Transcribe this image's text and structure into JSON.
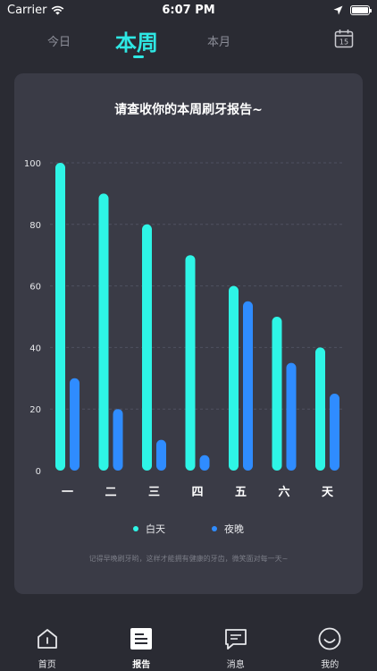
{
  "status_bar": {
    "carrier": "Carrier",
    "time": "6:07 PM",
    "icons": [
      "wifi-icon",
      "location-arrow-icon",
      "battery-icon"
    ]
  },
  "tabs": {
    "today": "今日",
    "week": "本周",
    "month": "本月",
    "selected": "week",
    "calendar_icon_day": "15"
  },
  "card": {
    "title": "请查收你的本周刷牙报告~",
    "footnote": "记得早晚刷牙哟，这样才能拥有健康的牙齿，微笑面对每一天~"
  },
  "chart_data": {
    "type": "bar",
    "categories": [
      "一",
      "二",
      "三",
      "四",
      "五",
      "六",
      "天"
    ],
    "series": [
      {
        "name": "白天",
        "values": [
          100,
          90,
          80,
          70,
          60,
          50,
          40
        ],
        "color": "#2ef5e6"
      },
      {
        "name": "夜晚",
        "values": [
          30,
          20,
          10,
          5,
          55,
          35,
          25
        ],
        "color": "#2f8cff"
      }
    ],
    "y_ticks": [
      "0",
      "20",
      "40",
      "60",
      "80",
      "100"
    ],
    "ylim": [
      0,
      100
    ],
    "grid": "dashed-horizontal",
    "legend_position": "bottom"
  },
  "bottom_nav": [
    {
      "label": "首页",
      "icon": "home-icon"
    },
    {
      "label": "报告",
      "icon": "report-icon",
      "active": true
    },
    {
      "label": "消息",
      "icon": "message-icon"
    },
    {
      "label": "我的",
      "icon": "smile-icon"
    }
  ]
}
